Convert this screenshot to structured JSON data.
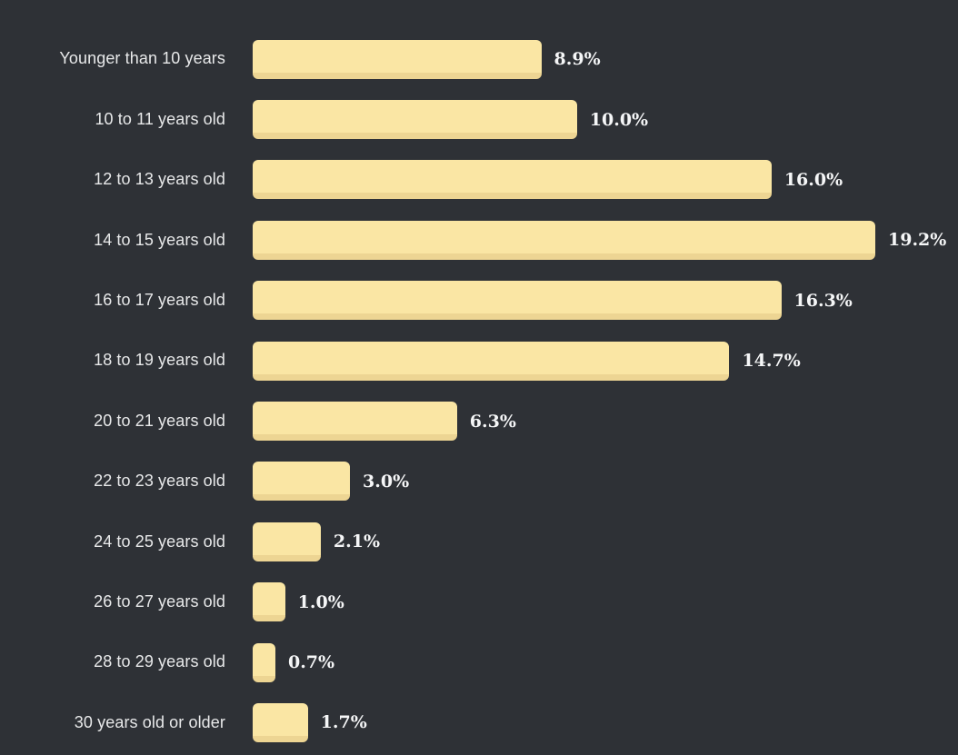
{
  "chart_data": {
    "type": "bar",
    "orientation": "horizontal",
    "title": "",
    "xlabel": "",
    "ylabel": "",
    "grid": false,
    "legend": false,
    "axis_ticks_visible": false,
    "xlim": [
      0,
      19.2
    ],
    "categories": [
      "Younger than 10 years",
      "10 to 11 years old",
      "12 to 13 years old",
      "14 to 15 years old",
      "16 to 17 years old",
      "18 to 19 years old",
      "20 to 21 years old",
      "22 to 23 years old",
      "24 to 25 years old",
      "26 to 27 years old",
      "28 to 29 years old",
      "30 years old or older"
    ],
    "values": [
      8.9,
      10.0,
      16.0,
      19.2,
      16.3,
      14.7,
      6.3,
      3.0,
      2.1,
      1.0,
      0.7,
      1.7
    ],
    "value_labels": [
      "8.9%",
      "10.0%",
      "16.0%",
      "19.2%",
      "16.3%",
      "14.7%",
      "6.3%",
      "3.0%",
      "2.1%",
      "1.0%",
      "0.7%",
      "1.7%"
    ],
    "colors": {
      "background": "#2e3136",
      "bar_fill": "#fae6a4",
      "bar_edge_bottom": "#edd593",
      "category_label": "#e8e9ea",
      "value_label": "#f5f6f7"
    }
  }
}
